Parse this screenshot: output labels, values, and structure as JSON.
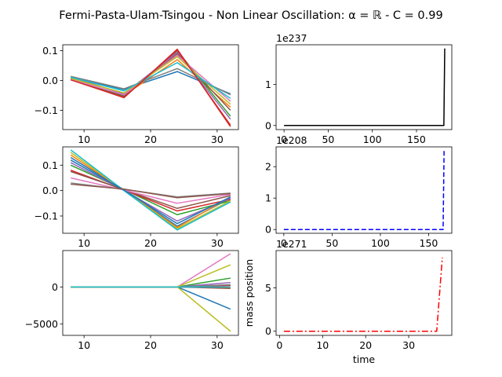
{
  "figure": {
    "title": "Fermi-Pasta-Ulam-Tsingou - Non Linear Oscillation: α = ℝ - C = 0.99"
  },
  "chart_data": [
    {
      "type": "line",
      "x": [
        8,
        16,
        24,
        32
      ],
      "xlim": [
        6.8,
        33.2
      ],
      "ylim": [
        -0.165,
        0.12
      ],
      "xticks": [
        10,
        20,
        30
      ],
      "yticks": [
        -0.1,
        0.0,
        0.1
      ],
      "ytick_labels": [
        "−0.1",
        "0.0",
        "0.1"
      ],
      "series": [
        {
          "color": "#1f77b4",
          "values": [
            0.01,
            -0.03,
            0.03,
            -0.045
          ]
        },
        {
          "color": "#ff7f0e",
          "values": [
            0.005,
            -0.05,
            0.07,
            -0.09
          ]
        },
        {
          "color": "#2ca02c",
          "values": [
            0.008,
            -0.055,
            0.1,
            -0.12
          ]
        },
        {
          "color": "#d62728",
          "values": [
            0.003,
            -0.058,
            0.105,
            -0.155
          ]
        },
        {
          "color": "#9467bd",
          "values": [
            0.012,
            -0.045,
            0.095,
            -0.13
          ]
        },
        {
          "color": "#8c564b",
          "values": [
            0.006,
            -0.052,
            0.09,
            -0.1
          ]
        },
        {
          "color": "#e377c2",
          "values": [
            0.004,
            -0.048,
            0.085,
            -0.07
          ]
        },
        {
          "color": "#7f7f7f",
          "values": [
            0.014,
            -0.028,
            0.04,
            -0.048
          ]
        },
        {
          "color": "#bcbd22",
          "values": [
            0.007,
            -0.042,
            0.08,
            -0.08
          ]
        },
        {
          "color": "#17becf",
          "values": [
            0.011,
            -0.035,
            0.06,
            -0.06
          ]
        },
        {
          "color": "#d62728",
          "values": [
            0.002,
            -0.057,
            0.102,
            -0.15
          ]
        }
      ]
    },
    {
      "type": "line",
      "x": [
        0,
        181,
        182
      ],
      "xlim": [
        -9,
        190
      ],
      "ylim": [
        -0.1,
        1.97
      ],
      "xticks": [
        0,
        50,
        100,
        150
      ],
      "yticks": [
        0,
        1
      ],
      "offset_text": "1e237",
      "series": [
        {
          "color": "#000000",
          "style": "solid",
          "values": [
            0,
            0,
            1.88
          ]
        }
      ]
    },
    {
      "type": "line",
      "x": [
        8,
        16,
        24,
        32
      ],
      "xlim": [
        6.8,
        33.2
      ],
      "ylim": [
        -0.168,
        0.172
      ],
      "xticks": [
        10,
        20,
        30
      ],
      "yticks": [
        -0.1,
        0.0,
        0.1
      ],
      "ytick_labels": [
        "−0.1",
        "0.0",
        "0.1"
      ],
      "series": [
        {
          "color": "#1f77b4",
          "values": [
            0.13,
            0.003,
            -0.14,
            -0.03
          ]
        },
        {
          "color": "#ff7f0e",
          "values": [
            0.14,
            0.002,
            -0.145,
            -0.025
          ]
        },
        {
          "color": "#2ca02c",
          "values": [
            0.1,
            0.004,
            -0.095,
            -0.04
          ]
        },
        {
          "color": "#d62728",
          "values": [
            0.08,
            0.003,
            -0.08,
            -0.035
          ]
        },
        {
          "color": "#9467bd",
          "values": [
            0.11,
            0.001,
            -0.12,
            -0.03
          ]
        },
        {
          "color": "#8c564b",
          "values": [
            0.075,
            0.004,
            -0.07,
            -0.02
          ]
        },
        {
          "color": "#e377c2",
          "values": [
            0.05,
            0.002,
            -0.05,
            -0.015
          ]
        },
        {
          "color": "#7f7f7f",
          "values": [
            0.03,
            0.005,
            -0.025,
            -0.01
          ]
        },
        {
          "color": "#bcbd22",
          "values": [
            0.15,
            0.001,
            -0.15,
            -0.04
          ]
        },
        {
          "color": "#17becf",
          "values": [
            0.16,
            0.0,
            -0.155,
            -0.045
          ]
        },
        {
          "color": "#1f77b4",
          "values": [
            0.12,
            0.002,
            -0.13,
            -0.025
          ]
        },
        {
          "color": "#8c564b",
          "values": [
            0.025,
            0.006,
            -0.028,
            -0.012
          ]
        }
      ]
    },
    {
      "type": "line",
      "x": [
        0,
        165,
        166
      ],
      "xlim": [
        -8,
        174
      ],
      "ylim": [
        -0.12,
        2.63
      ],
      "xticks": [
        0,
        50,
        100,
        150
      ],
      "yticks": [
        0,
        1,
        2
      ],
      "offset_text": "1e208",
      "series": [
        {
          "color": "#0000ff",
          "style": "dashed",
          "values": [
            0,
            0,
            2.5
          ]
        }
      ]
    },
    {
      "type": "line",
      "x": [
        8,
        16,
        24,
        32
      ],
      "xlim": [
        6.8,
        33.2
      ],
      "ylim": [
        -6560,
        4930
      ],
      "xticks": [
        10,
        20,
        30
      ],
      "yticks": [
        -5000,
        0
      ],
      "ytick_labels": [
        "−5000",
        "0"
      ],
      "ylabel": "mass position",
      "series": [
        {
          "color": "#1f77b4",
          "values": [
            0,
            0,
            0,
            -3000
          ]
        },
        {
          "color": "#ff7f0e",
          "values": [
            0,
            0,
            0,
            -100
          ]
        },
        {
          "color": "#2ca02c",
          "values": [
            0,
            0,
            0,
            1200
          ]
        },
        {
          "color": "#d62728",
          "values": [
            0,
            0,
            0,
            200
          ]
        },
        {
          "color": "#9467bd",
          "values": [
            0,
            0,
            0,
            600
          ]
        },
        {
          "color": "#8c564b",
          "values": [
            0,
            0,
            0,
            -200
          ]
        },
        {
          "color": "#e377c2",
          "values": [
            0,
            0,
            0,
            4500
          ]
        },
        {
          "color": "#7f7f7f",
          "values": [
            0,
            0,
            0,
            300
          ]
        },
        {
          "color": "#bcbd22",
          "values": [
            0,
            0,
            0,
            3000
          ]
        },
        {
          "color": "#bcbd22",
          "values": [
            0,
            0,
            0,
            -6000
          ]
        },
        {
          "color": "#17becf",
          "values": [
            0,
            0,
            0,
            0
          ]
        }
      ]
    },
    {
      "type": "line",
      "x": [
        1,
        36.5,
        37.8
      ],
      "xlim": [
        -0.8,
        40
      ],
      "ylim": [
        -0.48,
        9.3
      ],
      "xticks": [
        0,
        10,
        20,
        30
      ],
      "yticks": [
        0,
        5
      ],
      "offset_text": "1e271",
      "xlabel": "time",
      "series": [
        {
          "color": "#ff0000",
          "style": "dashdot",
          "values": [
            0,
            0,
            8.5
          ]
        }
      ]
    }
  ]
}
